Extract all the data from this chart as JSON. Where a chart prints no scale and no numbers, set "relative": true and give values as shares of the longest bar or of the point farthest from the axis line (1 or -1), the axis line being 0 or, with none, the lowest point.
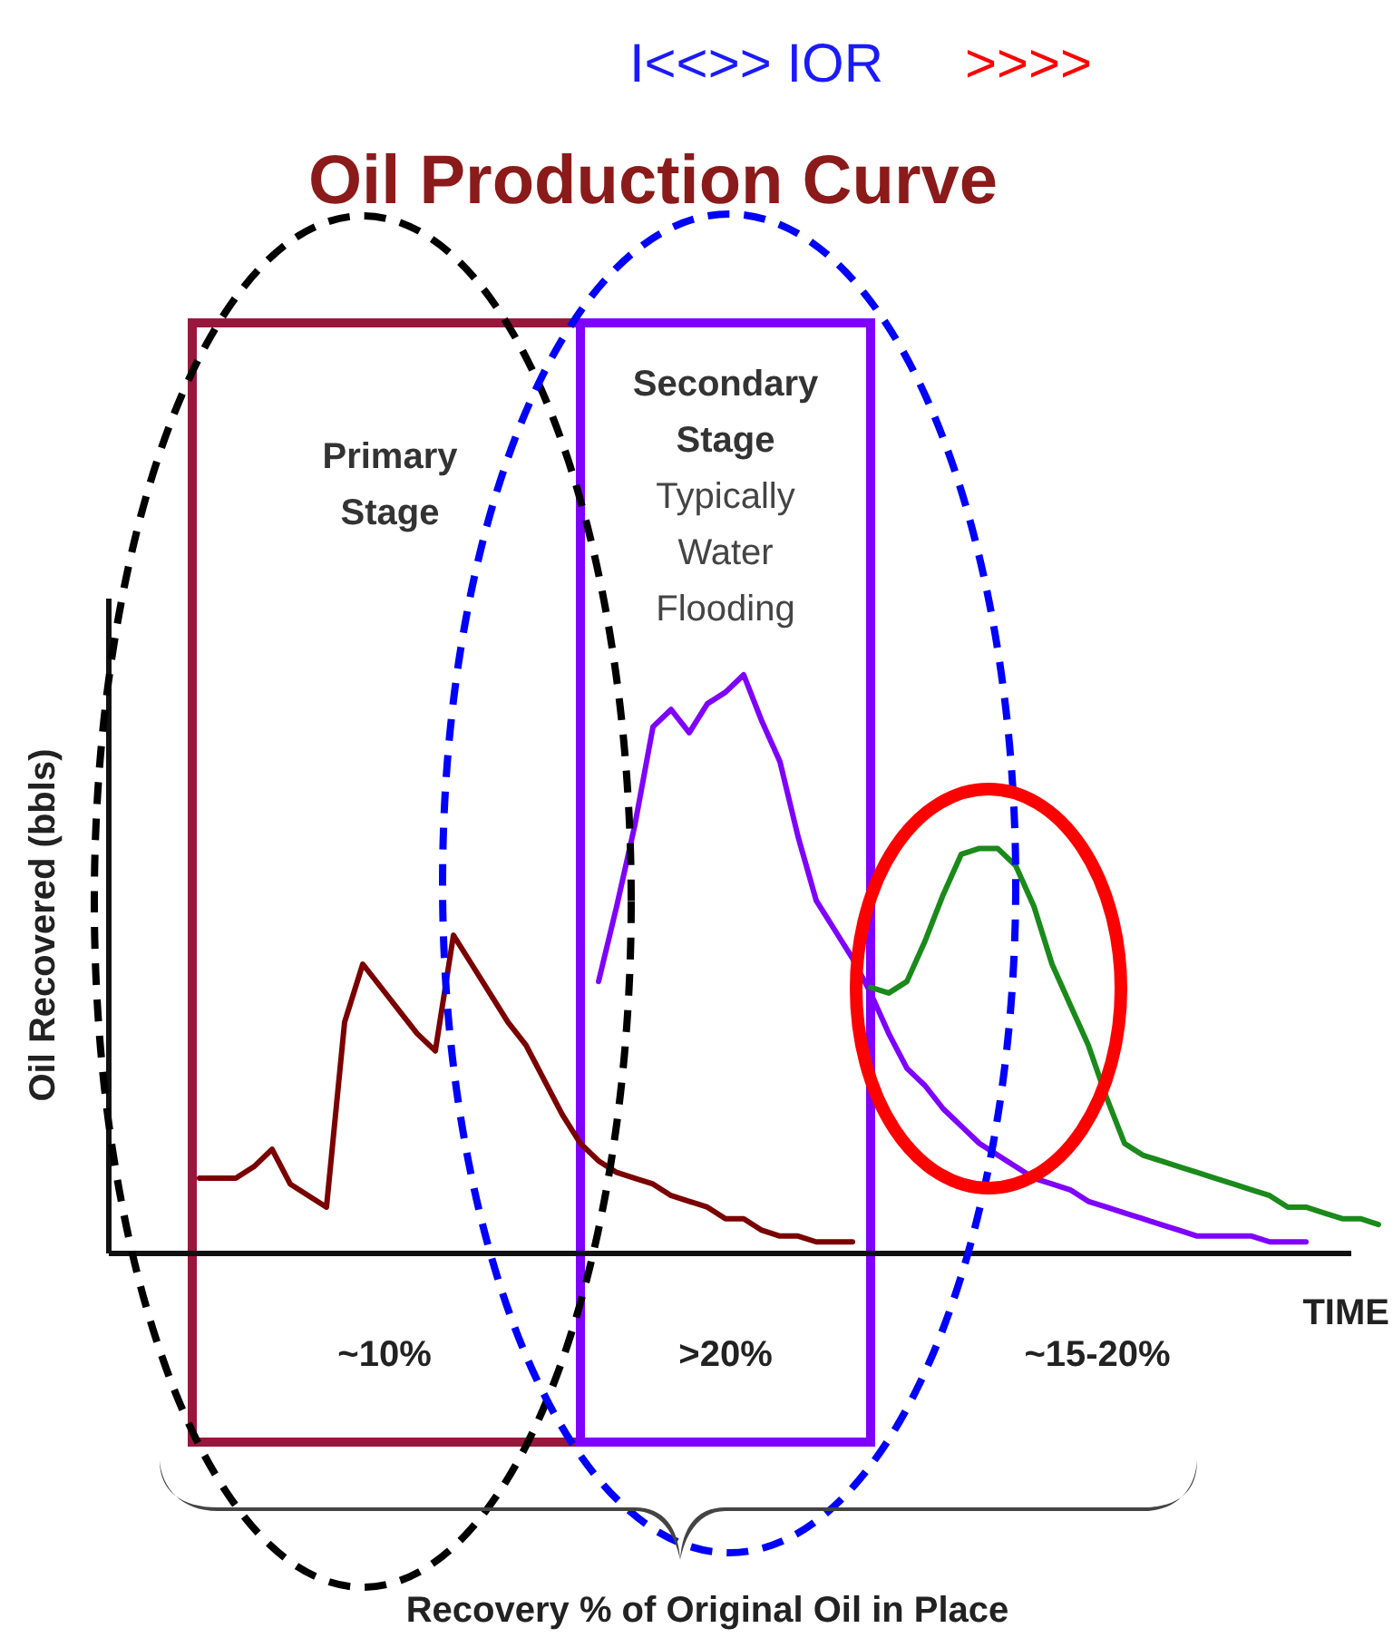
{
  "chart_data": {
    "type": "line",
    "relative": true,
    "title": "Oil Production Curve",
    "xlabel": "TIME",
    "ylabel": "Oil Recovered (bbls)",
    "categories": [
      null,
      null,
      null,
      null,
      null,
      null,
      null,
      null,
      null,
      null,
      null,
      null,
      null,
      null,
      null,
      null,
      null,
      null,
      null,
      null,
      null,
      null,
      null,
      null,
      null,
      null,
      null,
      null,
      null,
      null,
      null,
      null,
      null,
      null,
      null,
      null,
      null,
      null,
      null,
      null,
      null,
      null,
      null,
      null,
      null,
      null,
      null,
      null,
      null,
      null,
      null,
      null,
      null,
      null,
      null,
      null,
      null,
      null,
      null,
      null,
      null,
      null,
      null,
      null,
      null,
      null
    ],
    "series": [
      {
        "color": "#7b0000",
        "values": [
          0.13,
          0.13,
          0.13,
          0.15,
          0.18,
          0.12,
          0.1,
          0.08,
          0.4,
          0.5,
          0.46,
          0.42,
          0.38,
          0.35,
          0.55,
          0.5,
          0.45,
          0.4,
          0.36,
          0.3,
          0.24,
          0.19,
          0.16,
          0.14,
          0.13,
          0.12,
          0.1,
          0.09,
          0.08,
          0.06,
          0.06,
          0.04,
          0.03,
          0.03,
          0.02,
          0.02,
          0.02,
          null,
          null,
          null,
          null,
          null,
          null,
          null,
          null,
          null,
          null,
          null,
          null,
          null,
          null,
          null,
          null,
          null,
          null,
          null,
          null,
          null,
          null,
          null,
          null,
          null,
          null,
          null,
          null,
          null
        ]
      },
      {
        "color": "#7f00ff",
        "values": [
          null,
          null,
          null,
          null,
          null,
          null,
          null,
          null,
          null,
          null,
          null,
          null,
          null,
          null,
          null,
          null,
          null,
          null,
          null,
          null,
          null,
          null,
          0.47,
          0.6,
          0.74,
          0.91,
          0.94,
          0.9,
          0.95,
          0.97,
          1.0,
          0.92,
          0.85,
          0.72,
          0.61,
          0.56,
          0.51,
          0.45,
          0.38,
          0.32,
          0.29,
          0.25,
          0.22,
          0.19,
          0.17,
          0.15,
          0.13,
          0.12,
          0.11,
          0.09,
          0.08,
          0.07,
          0.06,
          0.05,
          0.04,
          0.03,
          0.03,
          0.03,
          0.03,
          0.02,
          0.02,
          0.02,
          null,
          null,
          null,
          null
        ]
      },
      {
        "color": "#1a8a1a",
        "values": [
          null,
          null,
          null,
          null,
          null,
          null,
          null,
          null,
          null,
          null,
          null,
          null,
          null,
          null,
          null,
          null,
          null,
          null,
          null,
          null,
          null,
          null,
          null,
          null,
          null,
          null,
          null,
          null,
          null,
          null,
          null,
          null,
          null,
          null,
          null,
          null,
          null,
          0.46,
          0.45,
          0.47,
          0.54,
          0.62,
          0.69,
          0.7,
          0.7,
          0.67,
          0.6,
          0.5,
          0.43,
          0.36,
          0.27,
          0.19,
          0.17,
          0.16,
          0.15,
          0.14,
          0.13,
          0.12,
          0.11,
          0.1,
          0.08,
          0.08,
          0.07,
          0.06,
          0.06,
          0.05
        ]
      }
    ],
    "annotations": [
      "I<<>> IOR",
      ">>>>",
      "Primary\nStage",
      "Secondary\nStage",
      "Typically\nWater\nFlooding",
      "~10%",
      ">20%",
      "~15-20%",
      "Recovery % of Original Oil in Place"
    ],
    "marker": "none",
    "line_style": "solid"
  }
}
